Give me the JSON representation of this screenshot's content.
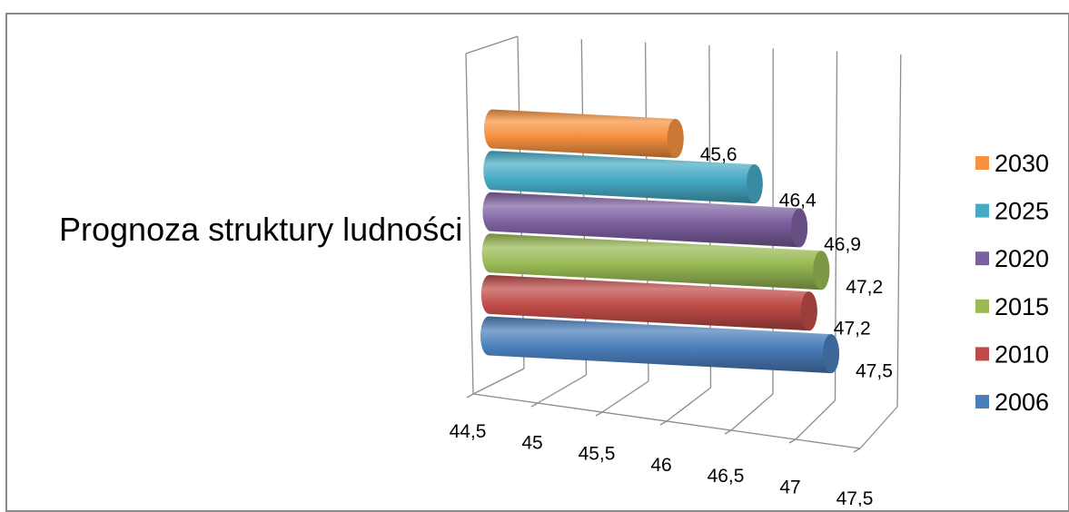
{
  "chart_data": {
    "type": "bar",
    "orientation": "horizontal",
    "style": "3d-cylinder",
    "category": "Prognoza struktury ludności",
    "series": [
      {
        "name": "2006",
        "value": 47.5,
        "label": "47,5",
        "color": "#4a7ebb"
      },
      {
        "name": "2010",
        "value": 47.2,
        "label": "47,2",
        "color": "#be4b48"
      },
      {
        "name": "2015",
        "value": 47.2,
        "label": "47,2",
        "color": "#98b954"
      },
      {
        "name": "2020",
        "value": 46.9,
        "label": "46,9",
        "color": "#7d60a0"
      },
      {
        "name": "2025",
        "value": 46.4,
        "label": "46,4",
        "color": "#46aac5"
      },
      {
        "name": "2030",
        "value": 45.6,
        "label": "45,6",
        "color": "#f69240"
      }
    ],
    "xlim": [
      44.5,
      47.5
    ],
    "ticks": [
      "44,5",
      "45",
      "45,5",
      "46",
      "46,5",
      "47",
      "47,5"
    ],
    "grid": true,
    "legend": {
      "position": "right",
      "order": [
        "2030",
        "2025",
        "2020",
        "2015",
        "2010",
        "2006"
      ]
    }
  }
}
